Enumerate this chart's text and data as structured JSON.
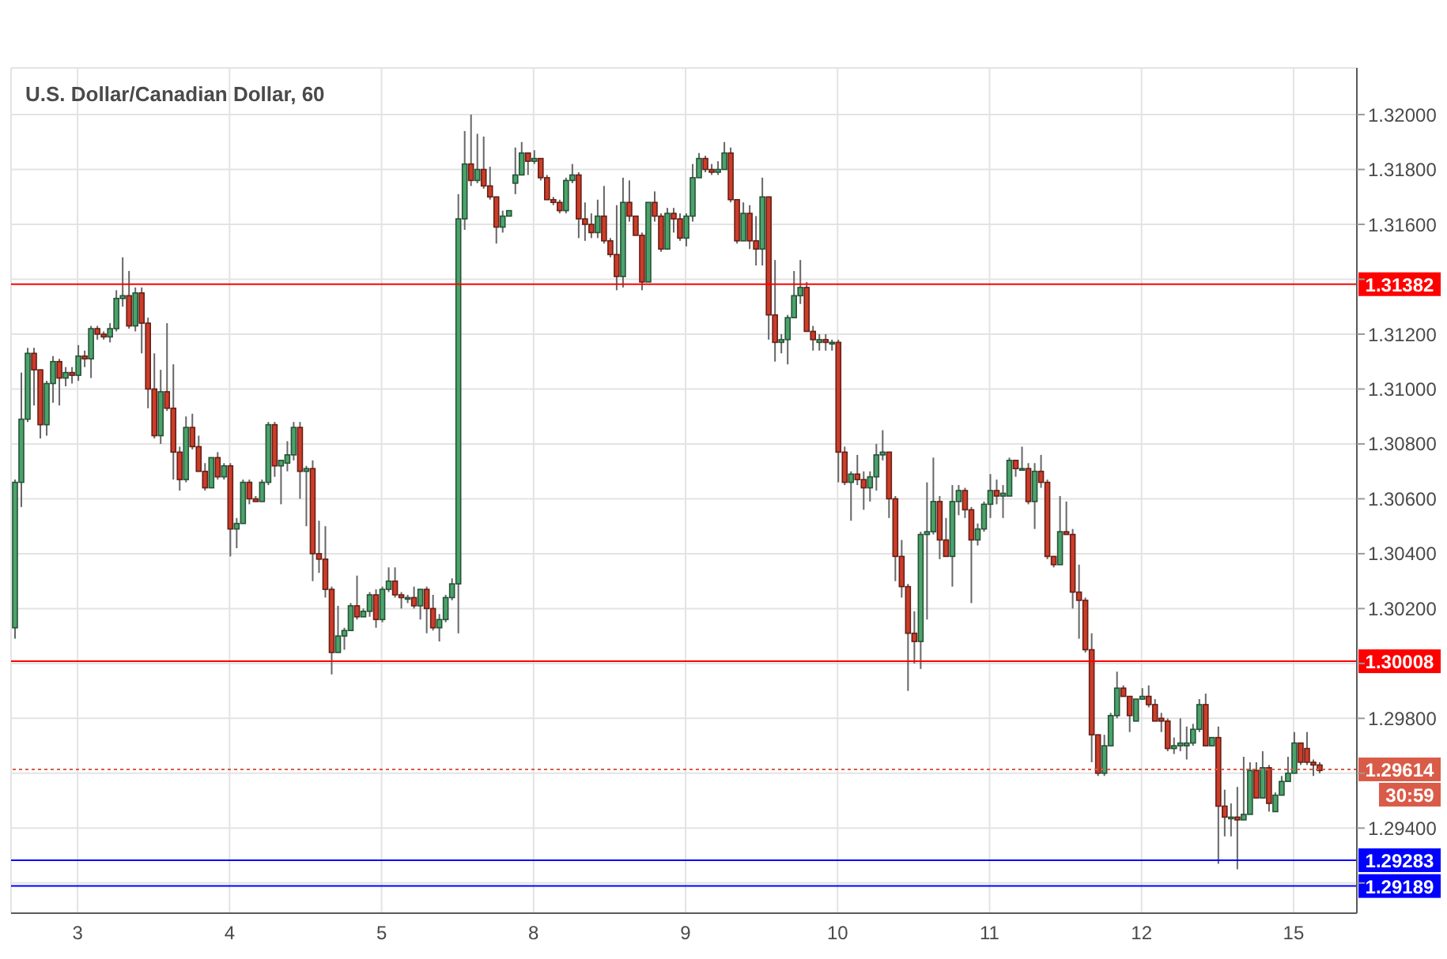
{
  "chart_data": {
    "type": "candlestick",
    "title": "U.S. Dollar/Canadian Dollar, 60",
    "categories": [
      null,
      null,
      null,
      null,
      null,
      null,
      null,
      null,
      null,
      null,
      "3",
      null,
      null,
      null,
      null,
      null,
      null,
      null,
      null,
      null,
      null,
      null,
      null,
      null,
      null,
      null,
      null,
      null,
      null,
      null,
      null,
      null,
      null,
      null,
      "4",
      null,
      null,
      null,
      null,
      null,
      null,
      null,
      null,
      null,
      null,
      null,
      null,
      null,
      null,
      null,
      null,
      null,
      null,
      null,
      null,
      null,
      null,
      null,
      "5",
      null,
      null,
      null,
      null,
      null,
      null,
      null,
      null,
      null,
      null,
      null,
      null,
      null,
      null,
      null,
      null,
      null,
      null,
      null,
      null,
      null,
      null,
      null,
      "8",
      null,
      null,
      null,
      null,
      null,
      null,
      null,
      null,
      null,
      null,
      null,
      null,
      null,
      null,
      null,
      null,
      null,
      null,
      null,
      null,
      null,
      null,
      null,
      "9",
      null,
      null,
      null,
      null,
      null,
      null,
      null,
      null,
      null,
      null,
      null,
      null,
      null,
      null,
      null,
      null,
      null,
      null,
      null,
      null,
      null,
      null,
      null,
      "10",
      null,
      null,
      null,
      null,
      null,
      null,
      null,
      null,
      null,
      null,
      null,
      null,
      null,
      null,
      null,
      null,
      null,
      null,
      null,
      null,
      null,
      null,
      null,
      "11",
      null,
      null,
      null,
      null,
      null,
      null,
      null,
      null,
      null,
      null,
      null,
      null,
      null,
      null,
      null,
      null,
      null,
      null,
      null,
      null,
      null,
      null,
      null,
      "12",
      null,
      null,
      null,
      null,
      null,
      null,
      null,
      null,
      null,
      null,
      null,
      null,
      null,
      null,
      null,
      null,
      null,
      null,
      null,
      null,
      null,
      null,
      null,
      "15",
      null,
      null,
      null,
      null
    ],
    "ohlc": [
      [
        1.3013,
        1.3067,
        1.3009,
        1.3066
      ],
      [
        1.3066,
        1.3106,
        1.3057,
        1.3089
      ],
      [
        1.3089,
        1.3115,
        1.3088,
        1.3113
      ],
      [
        1.3113,
        1.3115,
        1.3094,
        1.3107
      ],
      [
        1.3107,
        1.3107,
        1.3082,
        1.3087
      ],
      [
        1.3087,
        1.3103,
        1.3083,
        1.3102
      ],
      [
        1.3102,
        1.3112,
        1.3095,
        1.311
      ],
      [
        1.311,
        1.3111,
        1.3094,
        1.3104
      ],
      [
        1.3104,
        1.3108,
        1.3101,
        1.3106
      ],
      [
        1.3106,
        1.3108,
        1.3102,
        1.3105
      ],
      [
        1.3105,
        1.3116,
        1.3103,
        1.3112
      ],
      [
        1.3112,
        1.3114,
        1.3108,
        1.3111
      ],
      [
        1.3111,
        1.3123,
        1.3104,
        1.3122
      ],
      [
        1.3122,
        1.3123,
        1.3118,
        1.312
      ],
      [
        1.312,
        1.3121,
        1.3118,
        1.3119
      ],
      [
        1.3119,
        1.3124,
        1.3117,
        1.3122
      ],
      [
        1.3122,
        1.3136,
        1.3121,
        1.3133
      ],
      [
        1.3133,
        1.3148,
        1.313,
        1.3134
      ],
      [
        1.3134,
        1.3143,
        1.3122,
        1.3123
      ],
      [
        1.3123,
        1.3137,
        1.3121,
        1.3135
      ],
      [
        1.3135,
        1.3137,
        1.3113,
        1.3124
      ],
      [
        1.3124,
        1.3126,
        1.3093,
        1.31
      ],
      [
        1.31,
        1.3113,
        1.3082,
        1.3083
      ],
      [
        1.3083,
        1.3107,
        1.308,
        1.3099
      ],
      [
        1.3099,
        1.3124,
        1.3092,
        1.3093
      ],
      [
        1.3093,
        1.3109,
        1.3067,
        1.3077
      ],
      [
        1.3077,
        1.3079,
        1.3063,
        1.3067
      ],
      [
        1.3067,
        1.309,
        1.3066,
        1.3086
      ],
      [
        1.3086,
        1.3091,
        1.3078,
        1.3079
      ],
      [
        1.3079,
        1.3083,
        1.307,
        1.307
      ],
      [
        1.307,
        1.3073,
        1.3063,
        1.3064
      ],
      [
        1.3064,
        1.3075,
        1.3064,
        1.3075
      ],
      [
        1.3075,
        1.3077,
        1.3067,
        1.3068
      ],
      [
        1.3068,
        1.3073,
        1.3067,
        1.3072
      ],
      [
        1.3072,
        1.3073,
        1.3039,
        1.3049
      ],
      [
        1.3049,
        1.3053,
        1.3042,
        1.3051
      ],
      [
        1.3051,
        1.3067,
        1.3051,
        1.3066
      ],
      [
        1.3066,
        1.3067,
        1.3058,
        1.306
      ],
      [
        1.306,
        1.3061,
        1.3059,
        1.3059
      ],
      [
        1.3059,
        1.3067,
        1.3059,
        1.3066
      ],
      [
        1.3066,
        1.3088,
        1.3065,
        1.3087
      ],
      [
        1.3087,
        1.3088,
        1.3068,
        1.3072
      ],
      [
        1.3072,
        1.3074,
        1.3058,
        1.3074
      ],
      [
        1.3073,
        1.3081,
        1.307,
        1.3076
      ],
      [
        1.3076,
        1.3088,
        1.3074,
        1.3086
      ],
      [
        1.3086,
        1.3088,
        1.306,
        1.307
      ],
      [
        1.307,
        1.3072,
        1.305,
        1.3071
      ],
      [
        1.3071,
        1.3074,
        1.303,
        1.304
      ],
      [
        1.304,
        1.3052,
        1.3033,
        1.3038
      ],
      [
        1.3038,
        1.305,
        1.3024,
        1.3027
      ],
      [
        1.3027,
        1.3028,
        1.2996,
        1.3004
      ],
      [
        1.3004,
        1.3021,
        1.3004,
        1.301
      ],
      [
        1.301,
        1.3013,
        1.3005,
        1.3012
      ],
      [
        1.3012,
        1.3022,
        1.3012,
        1.3021
      ],
      [
        1.3021,
        1.3032,
        1.3016,
        1.3017
      ],
      [
        1.3017,
        1.302,
        1.3017,
        1.3019
      ],
      [
        1.3019,
        1.3026,
        1.3017,
        1.3025
      ],
      [
        1.3025,
        1.3027,
        1.3013,
        1.3016
      ],
      [
        1.3016,
        1.3028,
        1.3015,
        1.3027
      ],
      [
        1.3027,
        1.3035,
        1.3026,
        1.303
      ],
      [
        1.303,
        1.3035,
        1.3024,
        1.3025
      ],
      [
        1.3025,
        1.3026,
        1.302,
        1.3024
      ],
      [
        1.3024,
        1.3025,
        1.3022,
        1.3024
      ],
      [
        1.3024,
        1.3028,
        1.302,
        1.3021
      ],
      [
        1.3021,
        1.3027,
        1.3016,
        1.3027
      ],
      [
        1.3027,
        1.3028,
        1.3011,
        1.302
      ],
      [
        1.302,
        1.3025,
        1.3012,
        1.3013
      ],
      [
        1.3013,
        1.3018,
        1.3008,
        1.3016
      ],
      [
        1.3016,
        1.3025,
        1.3015,
        1.3024
      ],
      [
        1.3024,
        1.3031,
        1.3023,
        1.3029
      ],
      [
        1.3029,
        1.3171,
        1.3011,
        1.3162
      ],
      [
        1.3162,
        1.3194,
        1.3158,
        1.3182
      ],
      [
        1.3182,
        1.32,
        1.3174,
        1.3176
      ],
      [
        1.3176,
        1.3193,
        1.3175,
        1.318
      ],
      [
        1.318,
        1.3192,
        1.3173,
        1.3174
      ],
      [
        1.3174,
        1.3181,
        1.3169,
        1.317
      ],
      [
        1.317,
        1.317,
        1.3153,
        1.3159
      ],
      [
        1.3159,
        1.3165,
        1.3157,
        1.3163
      ],
      [
        1.3163,
        1.3165,
        1.3163,
        1.3165
      ],
      [
        1.3175,
        1.3188,
        1.3171,
        1.3178
      ],
      [
        1.3178,
        1.319,
        1.3178,
        1.3186
      ],
      [
        1.3186,
        1.3186,
        1.3178,
        1.3183
      ],
      [
        1.3183,
        1.3187,
        1.3182,
        1.3184
      ],
      [
        1.3184,
        1.3184,
        1.3176,
        1.3177
      ],
      [
        1.3177,
        1.3178,
        1.3169,
        1.3169
      ],
      [
        1.3169,
        1.317,
        1.3167,
        1.3168
      ],
      [
        1.3168,
        1.3169,
        1.3164,
        1.3165
      ],
      [
        1.3165,
        1.3177,
        1.3164,
        1.3176
      ],
      [
        1.3176,
        1.3182,
        1.3175,
        1.3178
      ],
      [
        1.3178,
        1.3179,
        1.3155,
        1.3162
      ],
      [
        1.3162,
        1.3168,
        1.3154,
        1.316
      ],
      [
        1.316,
        1.3164,
        1.3155,
        1.3157
      ],
      [
        1.3157,
        1.3169,
        1.3155,
        1.3163
      ],
      [
        1.3163,
        1.3174,
        1.3153,
        1.3154
      ],
      [
        1.3154,
        1.3155,
        1.3148,
        1.3149
      ],
      [
        1.3149,
        1.3167,
        1.3136,
        1.3141
      ],
      [
        1.3141,
        1.3177,
        1.3137,
        1.3168
      ],
      [
        1.3168,
        1.3176,
        1.3161,
        1.3163
      ],
      [
        1.3163,
        1.3163,
        1.3156,
        1.3156
      ],
      [
        1.3156,
        1.3157,
        1.3136,
        1.3139
      ],
      [
        1.3139,
        1.3168,
        1.3139,
        1.3168
      ],
      [
        1.3168,
        1.3172,
        1.3161,
        1.3163
      ],
      [
        1.3163,
        1.3164,
        1.315,
        1.3151
      ],
      [
        1.3151,
        1.3166,
        1.3151,
        1.3164
      ],
      [
        1.3164,
        1.3166,
        1.3157,
        1.3162
      ],
      [
        1.3162,
        1.3164,
        1.3154,
        1.3155
      ],
      [
        1.3155,
        1.3164,
        1.3152,
        1.3163
      ],
      [
        1.3163,
        1.3182,
        1.3161,
        1.3177
      ],
      [
        1.3177,
        1.3186,
        1.3177,
        1.3184
      ],
      [
        1.3184,
        1.3185,
        1.3179,
        1.318
      ],
      [
        1.318,
        1.3182,
        1.3178,
        1.3179
      ],
      [
        1.3179,
        1.3183,
        1.3178,
        1.318
      ],
      [
        1.318,
        1.319,
        1.318,
        1.3186
      ],
      [
        1.3186,
        1.3188,
        1.3168,
        1.3169
      ],
      [
        1.3169,
        1.3169,
        1.3153,
        1.3154
      ],
      [
        1.3154,
        1.3168,
        1.3154,
        1.3164
      ],
      [
        1.3164,
        1.3167,
        1.3151,
        1.3154
      ],
      [
        1.3154,
        1.3163,
        1.3145,
        1.3151
      ],
      [
        1.3151,
        1.3177,
        1.3145,
        1.317
      ],
      [
        1.317,
        1.317,
        1.3118,
        1.3127
      ],
      [
        1.3127,
        1.3147,
        1.311,
        1.3117
      ],
      [
        1.3117,
        1.312,
        1.3113,
        1.3118
      ],
      [
        1.3118,
        1.3127,
        1.3109,
        1.3126
      ],
      [
        1.3126,
        1.3143,
        1.3126,
        1.3134
      ],
      [
        1.3134,
        1.3147,
        1.3131,
        1.3137
      ],
      [
        1.3137,
        1.3139,
        1.3121,
        1.3121
      ],
      [
        1.3121,
        1.3123,
        1.3114,
        1.3118
      ],
      [
        1.3117,
        1.312,
        1.3114,
        1.3118
      ],
      [
        1.3118,
        1.312,
        1.3114,
        1.3117
      ],
      [
        1.3117,
        1.3118,
        1.3114,
        1.3117
      ],
      [
        1.3117,
        1.3118,
        1.3066,
        1.3077
      ],
      [
        1.3077,
        1.3079,
        1.3065,
        1.3066
      ],
      [
        1.3066,
        1.307,
        1.3052,
        1.3069
      ],
      [
        1.3069,
        1.3076,
        1.3065,
        1.3067
      ],
      [
        1.3067,
        1.307,
        1.3056,
        1.3064
      ],
      [
        1.3064,
        1.307,
        1.3059,
        1.3068
      ],
      [
        1.3068,
        1.308,
        1.3063,
        1.3076
      ],
      [
        1.3076,
        1.3085,
        1.3074,
        1.3077
      ],
      [
        1.3077,
        1.3077,
        1.3053,
        1.306
      ],
      [
        1.306,
        1.3061,
        1.303,
        1.3039
      ],
      [
        1.3039,
        1.3045,
        1.3024,
        1.3028
      ],
      [
        1.3028,
        1.3029,
        1.299,
        1.3011
      ],
      [
        1.3011,
        1.3019,
        1.3,
        1.3008
      ],
      [
        1.3008,
        1.3048,
        1.2998,
        1.3047
      ],
      [
        1.3047,
        1.3066,
        1.3016,
        1.3048
      ],
      [
        1.3048,
        1.3075,
        1.3047,
        1.3059
      ],
      [
        1.3059,
        1.3061,
        1.3038,
        1.3045
      ],
      [
        1.3045,
        1.3053,
        1.3039,
        1.3039
      ],
      [
        1.3039,
        1.3065,
        1.3028,
        1.3059
      ],
      [
        1.3059,
        1.3065,
        1.3054,
        1.3063
      ],
      [
        1.3063,
        1.3064,
        1.3053,
        1.3056
      ],
      [
        1.3056,
        1.3057,
        1.3022,
        1.3045
      ],
      [
        1.3045,
        1.3051,
        1.3043,
        1.3049
      ],
      [
        1.3049,
        1.3059,
        1.3048,
        1.3058
      ],
      [
        1.3058,
        1.3069,
        1.3053,
        1.3063
      ],
      [
        1.3063,
        1.3067,
        1.3058,
        1.3061
      ],
      [
        1.3061,
        1.3065,
        1.3053,
        1.3062
      ],
      [
        1.3061,
        1.3075,
        1.3061,
        1.3074
      ],
      [
        1.3074,
        1.3074,
        1.3068,
        1.3071
      ],
      [
        1.3071,
        1.3079,
        1.3071,
        1.3071
      ],
      [
        1.3071,
        1.3073,
        1.3058,
        1.3059
      ],
      [
        1.3059,
        1.3073,
        1.3049,
        1.307
      ],
      [
        1.307,
        1.3076,
        1.3064,
        1.3066
      ],
      [
        1.3066,
        1.3067,
        1.3038,
        1.3039
      ],
      [
        1.3039,
        1.3039,
        1.3035,
        1.3036
      ],
      [
        1.3036,
        1.3061,
        1.3036,
        1.3048
      ],
      [
        1.3048,
        1.3059,
        1.3047,
        1.3047
      ],
      [
        1.3047,
        1.3049,
        1.302,
        1.3026
      ],
      [
        1.3026,
        1.3036,
        1.3009,
        1.3023
      ],
      [
        1.3023,
        1.3024,
        1.3004,
        1.3005
      ],
      [
        1.3005,
        1.3011,
        1.2964,
        1.2974
      ],
      [
        1.2974,
        1.2974,
        1.2959,
        1.296
      ],
      [
        1.296,
        1.2974,
        1.2959,
        1.297
      ],
      [
        1.297,
        1.2982,
        1.297,
        1.2981
      ],
      [
        1.2981,
        1.2997,
        1.298,
        1.2991
      ],
      [
        1.2991,
        1.2992,
        1.2988,
        1.2988
      ],
      [
        1.2988,
        1.2988,
        1.2975,
        1.2981
      ],
      [
        1.2979,
        1.2987,
        1.2979,
        1.2987
      ],
      [
        1.2987,
        1.2991,
        1.2987,
        1.2988
      ],
      [
        1.2988,
        1.2992,
        1.2984,
        1.2985
      ],
      [
        1.2985,
        1.2987,
        1.2979,
        1.2979
      ],
      [
        1.298,
        1.2982,
        1.2975,
        1.2979
      ],
      [
        1.2979,
        1.298,
        1.2968,
        1.2969
      ],
      [
        1.2969,
        1.2973,
        1.2967,
        1.297
      ],
      [
        1.297,
        1.298,
        1.2968,
        1.2971
      ],
      [
        1.297,
        1.2977,
        1.2965,
        1.2971
      ],
      [
        1.2971,
        1.2978,
        1.297,
        1.2976
      ],
      [
        1.2976,
        1.2987,
        1.2975,
        1.2985
      ],
      [
        1.2985,
        1.2989,
        1.297,
        1.297
      ],
      [
        1.297,
        1.2973,
        1.297,
        1.2973
      ],
      [
        1.2973,
        1.2977,
        1.2927,
        1.2948
      ],
      [
        1.2948,
        1.2954,
        1.2937,
        1.2944
      ],
      [
        1.2944,
        1.2949,
        1.2937,
        1.2944
      ],
      [
        1.2944,
        1.2955,
        1.2925,
        1.2943
      ],
      [
        1.2943,
        1.2966,
        1.2943,
        1.2945
      ],
      [
        1.2945,
        1.2964,
        1.2945,
        1.2961
      ],
      [
        1.2961,
        1.2964,
        1.2951,
        1.2951
      ],
      [
        1.2951,
        1.2968,
        1.2951,
        1.2962
      ],
      [
        1.2962,
        1.2963,
        1.2946,
        1.2949
      ],
      [
        1.2946,
        1.2953,
        1.2946,
        1.2952
      ],
      [
        1.2952,
        1.2959,
        1.2952,
        1.2957
      ],
      [
        1.2957,
        1.2966,
        1.2957,
        1.296
      ],
      [
        1.296,
        1.2975,
        1.296,
        1.2971
      ],
      [
        1.2971,
        1.2971,
        1.2963,
        1.2964
      ],
      [
        1.2969,
        1.2975,
        1.2963,
        1.2964
      ],
      [
        1.2964,
        1.2965,
        1.2959,
        1.2963
      ],
      [
        1.2963,
        1.2964,
        1.296,
        1.2961
      ]
    ],
    "colors": [
      "#4ba36b",
      "#4ba36b",
      "#4ba36b",
      "#cc3d2a",
      "#cc3d2a",
      "#4ba36b",
      "#4ba36b",
      "#cc3d2a",
      "#4ba36b",
      "#cc3d2a",
      "#4ba36b",
      "#cc3d2a",
      "#4ba36b",
      "#cc3d2a",
      "#cc3d2a",
      "#4ba36b",
      "#4ba36b",
      "#4ba36b",
      "#cc3d2a",
      "#4ba36b",
      "#cc3d2a",
      "#cc3d2a",
      "#cc3d2a",
      "#4ba36b",
      "#cc3d2a",
      "#cc3d2a",
      "#cc3d2a",
      "#4ba36b",
      "#cc3d2a",
      "#cc3d2a",
      "#cc3d2a",
      "#4ba36b",
      "#cc3d2a",
      "#4ba36b",
      "#cc3d2a",
      "#4ba36b",
      "#4ba36b",
      "#cc3d2a",
      "#cc3d2a",
      "#4ba36b",
      "#4ba36b",
      "#cc3d2a",
      "#4ba36b",
      "#4ba36b",
      "#4ba36b",
      "#cc3d2a",
      "#4ba36b",
      "#cc3d2a",
      "#cc3d2a",
      "#cc3d2a",
      "#cc3d2a",
      "#4ba36b",
      "#4ba36b",
      "#4ba36b",
      "#cc3d2a",
      "#4ba36b",
      "#4ba36b",
      "#cc3d2a",
      "#4ba36b",
      "#4ba36b",
      "#cc3d2a",
      "#cc3d2a",
      "#4ba36b",
      "#cc3d2a",
      "#4ba36b",
      "#cc3d2a",
      "#cc3d2a",
      "#4ba36b",
      "#4ba36b",
      "#4ba36b",
      "#4ba36b",
      "#4ba36b",
      "#cc3d2a",
      "#4ba36b",
      "#cc3d2a",
      "#cc3d2a",
      "#cc3d2a",
      "#4ba36b",
      "#4ba36b",
      "#4ba36b",
      "#4ba36b",
      "#cc3d2a",
      "#4ba36b",
      "#cc3d2a",
      "#cc3d2a",
      "#cc3d2a",
      "#cc3d2a",
      "#4ba36b",
      "#4ba36b",
      "#cc3d2a",
      "#cc3d2a",
      "#cc3d2a",
      "#4ba36b",
      "#cc3d2a",
      "#cc3d2a",
      "#cc3d2a",
      "#4ba36b",
      "#cc3d2a",
      "#cc3d2a",
      "#cc3d2a",
      "#4ba36b",
      "#cc3d2a",
      "#cc3d2a",
      "#4ba36b",
      "#cc3d2a",
      "#cc3d2a",
      "#4ba36b",
      "#4ba36b",
      "#4ba36b",
      "#cc3d2a",
      "#cc3d2a",
      "#4ba36b",
      "#4ba36b",
      "#cc3d2a",
      "#cc3d2a",
      "#4ba36b",
      "#cc3d2a",
      "#cc3d2a",
      "#4ba36b",
      "#cc3d2a",
      "#cc3d2a",
      "#4ba36b",
      "#4ba36b",
      "#4ba36b",
      "#4ba36b",
      "#cc3d2a",
      "#cc3d2a",
      "#4ba36b",
      "#cc3d2a",
      "#4ba36b",
      "#cc3d2a",
      "#cc3d2a",
      "#4ba36b",
      "#cc3d2a",
      "#cc3d2a",
      "#4ba36b",
      "#4ba36b",
      "#4ba36b",
      "#cc3d2a",
      "#cc3d2a",
      "#cc3d2a",
      "#cc3d2a",
      "#cc3d2a",
      "#4ba36b",
      "#4ba36b",
      "#4ba36b",
      "#cc3d2a",
      "#cc3d2a",
      "#4ba36b",
      "#4ba36b",
      "#cc3d2a",
      "#cc3d2a",
      "#4ba36b",
      "#4ba36b",
      "#4ba36b",
      "#cc3d2a",
      "#4ba36b",
      "#4ba36b",
      "#cc3d2a",
      "#4ba36b",
      "#cc3d2a",
      "#4ba36b",
      "#cc3d2a",
      "#cc3d2a",
      "#cc3d2a",
      "#4ba36b",
      "#cc3d2a",
      "#cc3d2a",
      "#cc3d2a",
      "#cc3d2a",
      "#cc3d2a",
      "#cc3d2a",
      "#4ba36b",
      "#4ba36b",
      "#4ba36b",
      "#cc3d2a",
      "#cc3d2a",
      "#4ba36b",
      "#4ba36b",
      "#cc3d2a",
      "#cc3d2a",
      "#cc3d2a",
      "#cc3d2a",
      "#4ba36b",
      "#4ba36b",
      "#4ba36b",
      "#4ba36b",
      "#4ba36b",
      "#cc3d2a",
      "#4ba36b",
      "#cc3d2a",
      "#cc3d2a",
      "#4ba36b",
      "#cc3d2a",
      "#4ba36b",
      "#4ba36b",
      "#cc3d2a",
      "#4ba36b",
      "#cc3d2a",
      "#4ba36b",
      "#4ba36b",
      "#4ba36b",
      "#4ba36b",
      "#cc3d2a",
      "#cc3d2a",
      "#cc3d2a",
      "#cc3d2a"
    ],
    "ylim": [
      1.2909,
      1.3217
    ],
    "yticks": [
      {
        "value": 1.292,
        "label": null
      },
      {
        "value": 1.294,
        "label": "1.29400"
      },
      {
        "value": 1.296,
        "label": null
      },
      {
        "value": 1.298,
        "label": "1.29800"
      },
      {
        "value": 1.3,
        "label": null
      },
      {
        "value": 1.302,
        "label": "1.30200"
      },
      {
        "value": 1.304,
        "label": "1.30400"
      },
      {
        "value": 1.306,
        "label": "1.30600"
      },
      {
        "value": 1.308,
        "label": "1.30800"
      },
      {
        "value": 1.31,
        "label": "1.31000"
      },
      {
        "value": 1.312,
        "label": "1.31200"
      },
      {
        "value": 1.314,
        "label": null
      },
      {
        "value": 1.316,
        "label": "1.31600"
      },
      {
        "value": 1.318,
        "label": "1.31800"
      },
      {
        "value": 1.32,
        "label": "1.32000"
      }
    ],
    "grid": true,
    "ref_lines": [
      {
        "axis": "y",
        "value": 1.31382,
        "label": "1.31382",
        "color": "#ff0000",
        "line_style": "solid"
      },
      {
        "axis": "y",
        "value": 1.30008,
        "label": "1.30008",
        "color": "#ff0000",
        "line_style": "solid"
      },
      {
        "axis": "y",
        "value": 1.29614,
        "label": "1.29614",
        "color": "#d95c48",
        "line_style": "dotted"
      },
      {
        "axis": "y",
        "value": 1.29283,
        "label": "1.29283",
        "color": "#0000ff",
        "line_style": "solid"
      },
      {
        "axis": "y",
        "value": 1.29189,
        "label": "1.29189",
        "color": "#0000ff",
        "line_style": "solid"
      }
    ],
    "annotations": [
      "30:59"
    ]
  }
}
